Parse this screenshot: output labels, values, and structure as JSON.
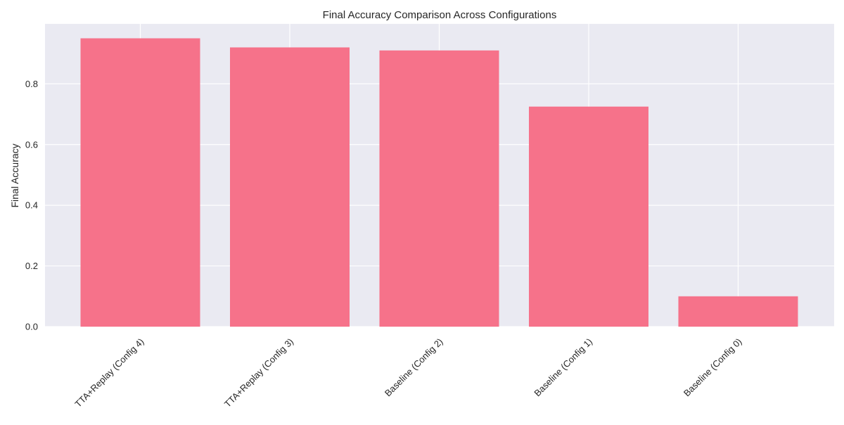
{
  "chart_data": {
    "type": "bar",
    "title": "Final Accuracy Comparison Across Configurations",
    "xlabel": "",
    "ylabel": "Final Accuracy",
    "categories": [
      "TTA+Replay (Config 4)",
      "TTA+Replay (Config 3)",
      "Baseline (Config 2)",
      "Baseline (Config 1)",
      "Baseline (Config 0)"
    ],
    "values": [
      0.95,
      0.92,
      0.91,
      0.725,
      0.1
    ],
    "ylim": [
      0,
      1.0
    ],
    "yticks": [
      "0.0",
      "0.2",
      "0.4",
      "0.6",
      "0.8"
    ],
    "bar_color": "#f6728a",
    "plot_background": "#eaeaf2",
    "grid": true,
    "grid_color": "#ffffff",
    "legend": "none"
  }
}
